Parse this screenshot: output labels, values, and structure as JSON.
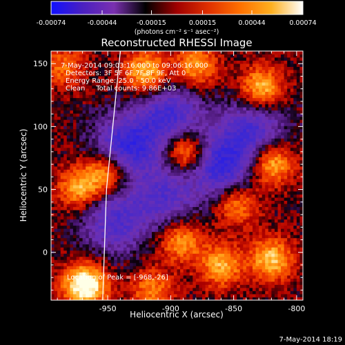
{
  "chart_data": {
    "type": "heatmap",
    "title": "Reconstructed RHESSI Image",
    "xlabel": "Heliocentric X (arcsec)",
    "ylabel": "Heliocentric Y (arcsec)",
    "xlim": [
      -995,
      -795
    ],
    "ylim": [
      -38,
      160
    ],
    "x_ticks": [
      -950,
      -900,
      -850,
      -800
    ],
    "x_tick_labels": [
      "-950",
      "-900",
      "-850",
      "-800"
    ],
    "y_ticks": [
      0,
      50,
      100,
      150
    ],
    "y_tick_labels": [
      "0",
      "50",
      "100",
      "150"
    ],
    "colorbar": {
      "range": [
        -0.00074,
        0.00074
      ],
      "ticks": [
        -0.00074,
        -0.00044,
        -0.00015,
        0.00015,
        0.00044,
        0.00074
      ],
      "tick_labels": [
        "-0.00074",
        "-0.00044",
        "-0.00015",
        "0.00015",
        "0.00044",
        "0.00074"
      ],
      "units": "(photons cm⁻² s⁻¹ asec⁻²)",
      "colors": [
        "#1010ff",
        "#4a20c0",
        "#7a30b0",
        "#000000",
        "#a00000",
        "#e03000",
        "#ff7000",
        "#ffb020",
        "#ffffff"
      ]
    },
    "info_lines": [
      "7-May-2014 09:03:16.000 to 09:06:16.000",
      "Detectors: 3F 5F 6F 7F 8F 9F, Att 0",
      "Energy Range: 25.0 - 50.0 keV",
      "Clean     Total counts: 9.86E+03"
    ],
    "peak_label": "Location of Peak = [-968,-26]",
    "peak": [
      -968,
      -26
    ],
    "sources": [
      {
        "x": -968,
        "y": -26,
        "peak": 0.00074
      },
      {
        "x": -950,
        "y": 65,
        "peak": 0.00052
      },
      {
        "x": -972,
        "y": 52,
        "peak": 0.00045
      },
      {
        "x": -920,
        "y": 145,
        "peak": 0.0005
      },
      {
        "x": -880,
        "y": 150,
        "peak": 0.00042
      },
      {
        "x": -828,
        "y": 132,
        "peak": 0.00052
      },
      {
        "x": -888,
        "y": 82,
        "peak": 0.00055
      },
      {
        "x": -820,
        "y": 72,
        "peak": 0.00052
      },
      {
        "x": -848,
        "y": 40,
        "peak": 0.0004
      },
      {
        "x": -860,
        "y": -10,
        "peak": 0.00045
      },
      {
        "x": -820,
        "y": -5,
        "peak": 0.0005
      },
      {
        "x": -892,
        "y": 10,
        "peak": 0.00042
      },
      {
        "x": -915,
        "y": -30,
        "peak": 0.00035
      },
      {
        "x": -985,
        "y": 150,
        "peak": 0.0003
      }
    ],
    "negative_regions": [
      {
        "x": -935,
        "y": 85,
        "depth": -0.0006
      },
      {
        "x": -860,
        "y": 70,
        "depth": -0.00058
      },
      {
        "x": -900,
        "y": 110,
        "depth": -0.0005
      },
      {
        "x": -945,
        "y": 25,
        "depth": -0.00045
      },
      {
        "x": -835,
        "y": 100,
        "depth": -0.00045
      },
      {
        "x": -905,
        "y": 45,
        "depth": -0.0004
      }
    ],
    "limb_curve": [
      {
        "x": -940,
        "y": 160
      },
      {
        "x": -951,
        "y": 50
      },
      {
        "x": -954,
        "y": -38
      }
    ],
    "grid": false
  },
  "timestamp": "7-May-2014 18:19"
}
